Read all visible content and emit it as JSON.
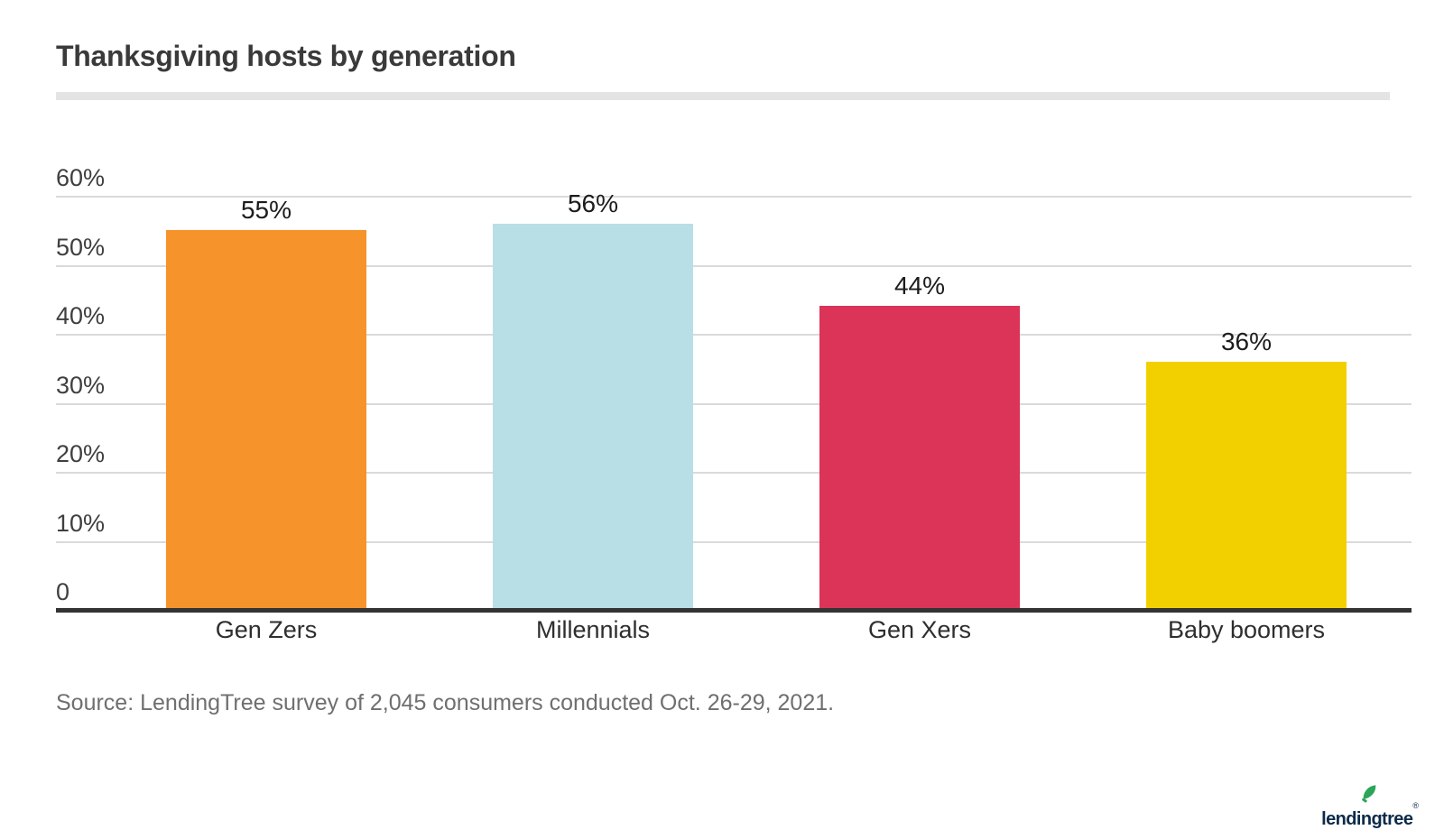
{
  "header": {
    "title": "Thanksgiving hosts by generation"
  },
  "chart_data": {
    "type": "bar",
    "title": "Thanksgiving hosts by generation",
    "categories": [
      "Gen Zers",
      "Millennials",
      "Gen Xers",
      "Baby boomers"
    ],
    "values": [
      55,
      56,
      44,
      36
    ],
    "value_labels": [
      "55%",
      "56%",
      "44%",
      "36%"
    ],
    "bar_colors": [
      "#F6932A",
      "#B8DEE6",
      "#DB3458",
      "#F2D000"
    ],
    "xlabel": "",
    "ylabel": "",
    "ylim": [
      0,
      60
    ],
    "y_ticks": [
      {
        "value": 0,
        "label": "0"
      },
      {
        "value": 10,
        "label": "10%"
      },
      {
        "value": 20,
        "label": "20%"
      },
      {
        "value": 30,
        "label": "30%"
      },
      {
        "value": 40,
        "label": "40%"
      },
      {
        "value": 50,
        "label": "50%"
      },
      {
        "value": 60,
        "label": "60%"
      }
    ],
    "grid": true,
    "legend": false,
    "data_labels": true
  },
  "footer": {
    "source": "Source: LendingTree survey of 2,045 consumers conducted Oct. 26-29, 2021.",
    "logo": {
      "text": "lendingtree",
      "registered": "®",
      "leaf_icon": "leaf-icon",
      "leaf_color": "#2BA558",
      "navy_color": "#0C2B4A"
    }
  },
  "colors": {
    "gridline": "#DADADA",
    "axis_line": "#333333",
    "title_text": "#3A3A3A",
    "tick_text": "#3F3F3F",
    "source_text": "#6F6F6F",
    "divider": "#E4E4E4",
    "background": "#FFFFFF"
  }
}
